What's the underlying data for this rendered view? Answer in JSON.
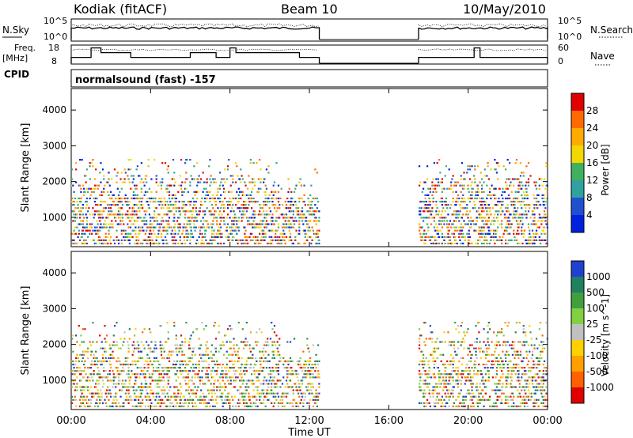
{
  "header": {
    "station": "Kodiak (fitACF)",
    "beam": "Beam 10",
    "date": "10/May/2010"
  },
  "side_labels": {
    "nsky": "N.Sky",
    "freq": "Freq.",
    "freq_unit": "[MHz]",
    "cpid": "CPID",
    "nsearch": "N.Search",
    "nave": "Nave"
  },
  "cpid_text": "normalsound (fast) -157",
  "xaxis": {
    "label": "Time UT",
    "ticks": [
      "00:00",
      "04:00",
      "08:00",
      "12:00",
      "16:00",
      "20:00",
      "00:00"
    ]
  },
  "chart_data": [
    {
      "type": "line",
      "name": "noise-panel",
      "left_ticks": [
        "10^5",
        "10^0"
      ],
      "right_ticks": [
        "10^5",
        "10^0"
      ],
      "segments": [
        [
          0,
          12.5
        ],
        [
          17.5,
          24
        ]
      ]
    },
    {
      "type": "line",
      "name": "freq-panel",
      "left_ticks": [
        "18",
        "8"
      ],
      "right_ticks": [
        "60",
        "0"
      ],
      "freq_steps": [
        {
          "t0": 0.0,
          "t1": 1.0,
          "level": 0.35
        },
        {
          "t0": 1.0,
          "t1": 1.5,
          "level": 0.85
        },
        {
          "t0": 1.5,
          "t1": 3.0,
          "level": 0.6
        },
        {
          "t0": 3.0,
          "t1": 6.0,
          "level": 0.35
        },
        {
          "t0": 6.0,
          "t1": 7.3,
          "level": 0.6
        },
        {
          "t0": 7.3,
          "t1": 8.0,
          "level": 0.35
        },
        {
          "t0": 8.0,
          "t1": 8.3,
          "level": 0.85
        },
        {
          "t0": 8.3,
          "t1": 11.5,
          "level": 0.6
        },
        {
          "t0": 11.5,
          "t1": 12.5,
          "level": 0.35
        },
        {
          "t0": 17.5,
          "t1": 20.3,
          "level": 0.35
        },
        {
          "t0": 20.3,
          "t1": 20.6,
          "level": 0.85
        },
        {
          "t0": 20.6,
          "t1": 24.0,
          "level": 0.35
        }
      ]
    },
    {
      "type": "heatmap",
      "name": "power",
      "ylabel": "Slant Range [km]",
      "yticks": [
        1000,
        2000,
        3000,
        4000
      ],
      "ylim": [
        180,
        4600
      ],
      "xlim": [
        0,
        24
      ],
      "colorbar_label": "Power [dB]",
      "colorbar_ticks": [
        "28",
        "24",
        "20",
        "16",
        "12",
        "8",
        "4"
      ],
      "colorbar_colors": [
        "#e00000",
        "#ff6a00",
        "#ffaa00",
        "#f0d800",
        "#40b060",
        "#30a0a0",
        "#2050d0",
        "#0020e0"
      ]
    },
    {
      "type": "heatmap",
      "name": "velocity",
      "ylabel": "Slant Range [km]",
      "yticks": [
        1000,
        2000,
        3000,
        4000
      ],
      "ylim": [
        180,
        4600
      ],
      "xlim": [
        0,
        24
      ],
      "colorbar_label": "Velocity [m s^-1]",
      "colorbar_ticks": [
        "1000",
        "500",
        "100",
        "25",
        "-25",
        "-100",
        "-500",
        "-1000"
      ],
      "colorbar_colors": [
        "#2040d0",
        "#208060",
        "#40a040",
        "#80d040",
        "#c0c0c0",
        "#ffd000",
        "#ffa000",
        "#ff6000",
        "#e00000"
      ]
    }
  ]
}
